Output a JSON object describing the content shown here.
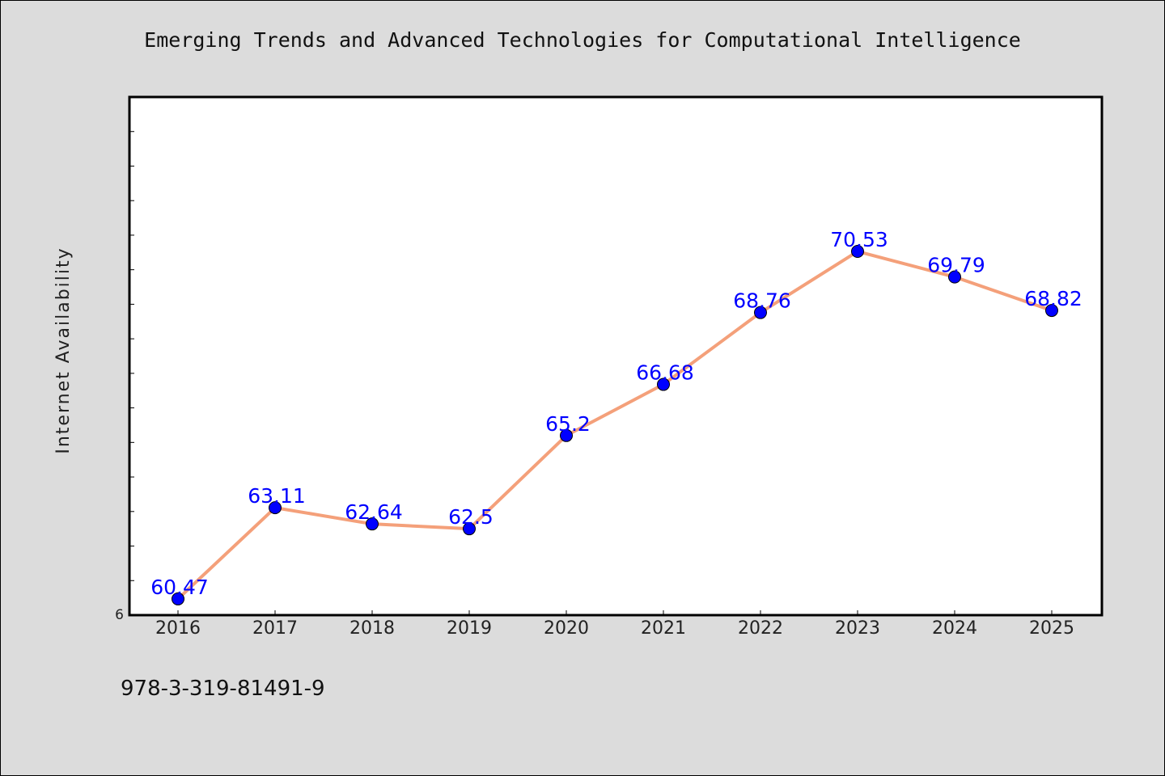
{
  "page": {
    "title": "Emerging Trends and Advanced Technologies for Computational Intelligence",
    "footer": "978-3-319-81491-9"
  },
  "colors": {
    "background": "#dcdcdc",
    "plot_background": "#ffffff",
    "line": "#f4a07a",
    "marker": "#0000ff",
    "data_label": "#0000ff",
    "axis": "#000000"
  },
  "chart_data": {
    "type": "line",
    "title": "Emerging Trends and Advanced Technologies for Computational Intelligence",
    "xlabel": "",
    "ylabel": "Internet Availability",
    "x": [
      "2016",
      "2017",
      "2018",
      "2019",
      "2020",
      "2021",
      "2022",
      "2023",
      "2024",
      "2025"
    ],
    "series": [
      {
        "values": [
          60.47,
          63.11,
          62.64,
          62.5,
          65.2,
          66.68,
          68.76,
          70.53,
          69.79,
          68.82
        ],
        "labels": [
          "60.47",
          "63.11",
          "62.64",
          "62.5",
          "65.2",
          "66.68",
          "68.76",
          "70.53",
          "69.79",
          "68.82"
        ]
      }
    ],
    "ylim": [
      60,
      75
    ],
    "y_tick_label": "6",
    "y_minor_tick_step": 1,
    "grid": false,
    "legend": "none"
  }
}
